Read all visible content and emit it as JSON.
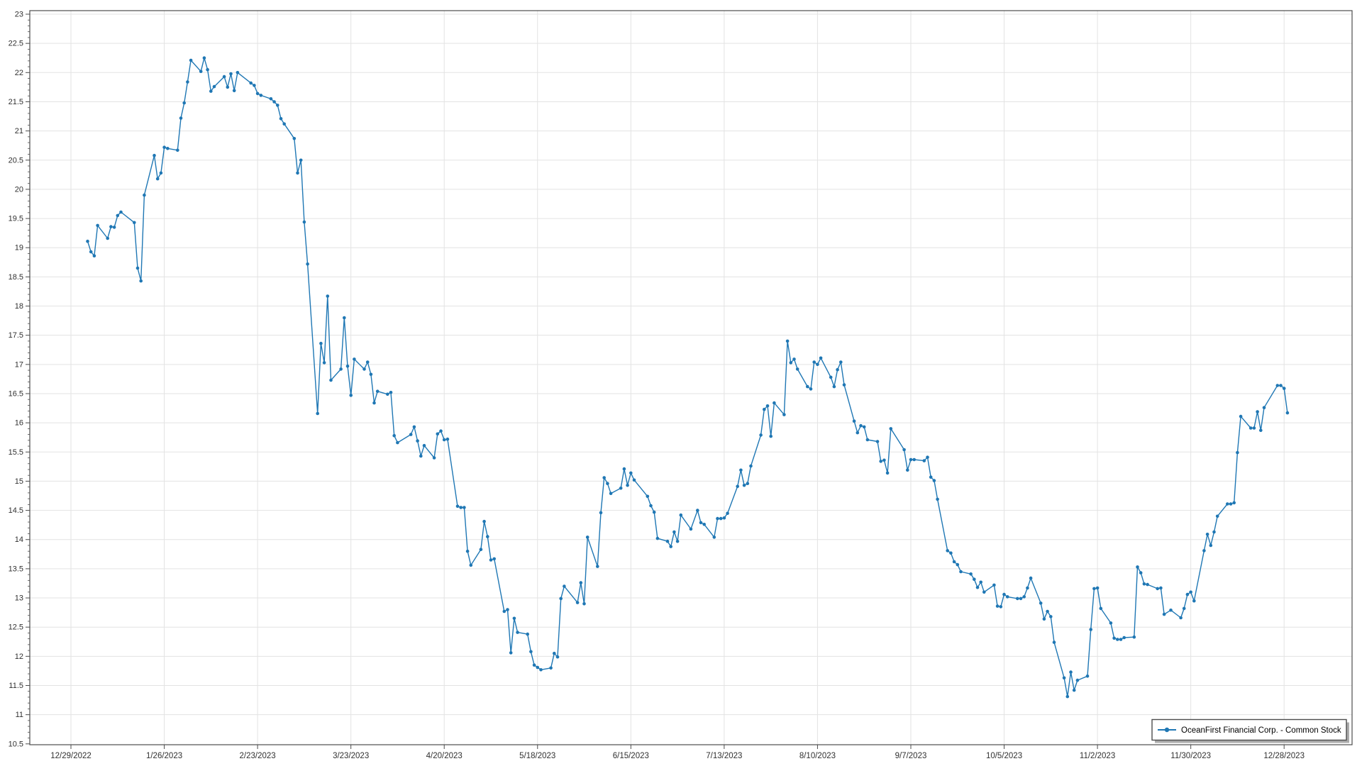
{
  "chart_data": {
    "type": "line",
    "title": "",
    "legend_position": "bottom-right",
    "grid": true,
    "colors": {
      "series": "#1f77b4",
      "grid": "#e3e3e3",
      "axis": "#4c4c4c",
      "tick_text": "#303030",
      "legend_border": "#4d4d4d",
      "legend_shadow": "#ababab",
      "background": "#ffffff"
    },
    "y_axis": {
      "min": 10.5,
      "max": 23,
      "major_step": 0.5,
      "minor_step": 0.1
    },
    "x_axis": {
      "start_date": "12/29/2022",
      "tick_interval_days": 28,
      "tick_labels": [
        "12/29/2022",
        "1/26/2023",
        "2/23/2023",
        "3/23/2023",
        "4/20/2023",
        "5/18/2023",
        "6/15/2023",
        "7/13/2023",
        "8/10/2023",
        "9/7/2023",
        "10/5/2023",
        "11/2/2023",
        "11/30/2023",
        "12/28/2023"
      ]
    },
    "series": [
      {
        "name": "OceanFirst Financial Corp. - Common Stock",
        "color": "#1f77b4",
        "points": [
          [
            "1/3/2023",
            19.11
          ],
          [
            "1/4/2023",
            18.93
          ],
          [
            "1/5/2023",
            18.86
          ],
          [
            "1/6/2023",
            19.38
          ],
          [
            "1/9/2023",
            19.16
          ],
          [
            "1/10/2023",
            19.36
          ],
          [
            "1/11/2023",
            19.35
          ],
          [
            "1/12/2023",
            19.55
          ],
          [
            "1/13/2023",
            19.61
          ],
          [
            "1/17/2023",
            19.43
          ],
          [
            "1/18/2023",
            18.65
          ],
          [
            "1/19/2023",
            18.43
          ],
          [
            "1/20/2023",
            19.9
          ],
          [
            "1/23/2023",
            20.58
          ],
          [
            "1/24/2023",
            20.18
          ],
          [
            "1/25/2023",
            20.28
          ],
          [
            "1/26/2023",
            20.72
          ],
          [
            "1/27/2023",
            20.7
          ],
          [
            "1/30/2023",
            20.67
          ],
          [
            "1/31/2023",
            21.22
          ],
          [
            "2/1/2023",
            21.48
          ],
          [
            "2/2/2023",
            21.84
          ],
          [
            "2/3/2023",
            22.21
          ],
          [
            "2/6/2023",
            22.02
          ],
          [
            "2/7/2023",
            22.25
          ],
          [
            "2/8/2023",
            22.05
          ],
          [
            "2/9/2023",
            21.68
          ],
          [
            "2/10/2023",
            21.76
          ],
          [
            "2/13/2023",
            21.93
          ],
          [
            "2/14/2023",
            21.75
          ],
          [
            "2/15/2023",
            21.98
          ],
          [
            "2/16/2023",
            21.69
          ],
          [
            "2/17/2023",
            22.0
          ],
          [
            "2/21/2023",
            21.82
          ],
          [
            "2/22/2023",
            21.78
          ],
          [
            "2/23/2023",
            21.64
          ],
          [
            "2/24/2023",
            21.61
          ],
          [
            "2/27/2023",
            21.55
          ],
          [
            "2/28/2023",
            21.5
          ],
          [
            "3/1/2023",
            21.44
          ],
          [
            "3/2/2023",
            21.21
          ],
          [
            "3/3/2023",
            21.12
          ],
          [
            "3/6/2023",
            20.87
          ],
          [
            "3/7/2023",
            20.28
          ],
          [
            "3/8/2023",
            20.5
          ],
          [
            "3/9/2023",
            19.44
          ],
          [
            "3/10/2023",
            18.72
          ],
          [
            "3/13/2023",
            16.16
          ],
          [
            "3/14/2023",
            17.36
          ],
          [
            "3/15/2023",
            17.03
          ],
          [
            "3/16/2023",
            18.17
          ],
          [
            "3/17/2023",
            16.73
          ],
          [
            "3/20/2023",
            16.92
          ],
          [
            "3/21/2023",
            17.8
          ],
          [
            "3/22/2023",
            16.97
          ],
          [
            "3/23/2023",
            16.47
          ],
          [
            "3/24/2023",
            17.09
          ],
          [
            "3/27/2023",
            16.92
          ],
          [
            "3/28/2023",
            17.04
          ],
          [
            "3/29/2023",
            16.83
          ],
          [
            "3/30/2023",
            16.34
          ],
          [
            "3/31/2023",
            16.54
          ],
          [
            "4/3/2023",
            16.49
          ],
          [
            "4/4/2023",
            16.52
          ],
          [
            "4/5/2023",
            15.78
          ],
          [
            "4/6/2023",
            15.66
          ],
          [
            "4/10/2023",
            15.8
          ],
          [
            "4/11/2023",
            15.93
          ],
          [
            "4/12/2023",
            15.69
          ],
          [
            "4/13/2023",
            15.43
          ],
          [
            "4/14/2023",
            15.61
          ],
          [
            "4/17/2023",
            15.4
          ],
          [
            "4/18/2023",
            15.81
          ],
          [
            "4/19/2023",
            15.86
          ],
          [
            "4/20/2023",
            15.71
          ],
          [
            "4/21/2023",
            15.72
          ],
          [
            "4/24/2023",
            14.57
          ],
          [
            "4/25/2023",
            14.55
          ],
          [
            "4/26/2023",
            14.55
          ],
          [
            "4/27/2023",
            13.8
          ],
          [
            "4/28/2023",
            13.56
          ],
          [
            "5/1/2023",
            13.83
          ],
          [
            "5/2/2023",
            14.31
          ],
          [
            "5/3/2023",
            14.05
          ],
          [
            "5/4/2023",
            13.65
          ],
          [
            "5/5/2023",
            13.67
          ],
          [
            "5/8/2023",
            12.77
          ],
          [
            "5/9/2023",
            12.8
          ],
          [
            "5/10/2023",
            12.06
          ],
          [
            "5/11/2023",
            12.65
          ],
          [
            "5/12/2023",
            12.41
          ],
          [
            "5/15/2023",
            12.38
          ],
          [
            "5/16/2023",
            12.08
          ],
          [
            "5/17/2023",
            11.85
          ],
          [
            "5/18/2023",
            11.81
          ],
          [
            "5/19/2023",
            11.77
          ],
          [
            "5/22/2023",
            11.8
          ],
          [
            "5/23/2023",
            12.05
          ],
          [
            "5/24/2023",
            11.99
          ],
          [
            "5/25/2023",
            12.99
          ],
          [
            "5/26/2023",
            13.2
          ],
          [
            "5/30/2023",
            12.92
          ],
          [
            "5/31/2023",
            13.26
          ],
          [
            "6/1/2023",
            12.9
          ],
          [
            "6/2/2023",
            14.04
          ],
          [
            "6/5/2023",
            13.54
          ],
          [
            "6/6/2023",
            14.46
          ],
          [
            "6/7/2023",
            15.06
          ],
          [
            "6/8/2023",
            14.96
          ],
          [
            "6/9/2023",
            14.79
          ],
          [
            "6/12/2023",
            14.88
          ],
          [
            "6/13/2023",
            15.21
          ],
          [
            "6/14/2023",
            14.93
          ],
          [
            "6/15/2023",
            15.14
          ],
          [
            "6/16/2023",
            15.02
          ],
          [
            "6/20/2023",
            14.74
          ],
          [
            "6/21/2023",
            14.58
          ],
          [
            "6/22/2023",
            14.47
          ],
          [
            "6/23/2023",
            14.02
          ],
          [
            "6/26/2023",
            13.97
          ],
          [
            "6/27/2023",
            13.88
          ],
          [
            "6/28/2023",
            14.13
          ],
          [
            "6/29/2023",
            13.97
          ],
          [
            "6/30/2023",
            14.42
          ],
          [
            "7/3/2023",
            14.18
          ],
          [
            "7/5/2023",
            14.5
          ],
          [
            "7/6/2023",
            14.29
          ],
          [
            "7/7/2023",
            14.26
          ],
          [
            "7/10/2023",
            14.04
          ],
          [
            "7/11/2023",
            14.36
          ],
          [
            "7/12/2023",
            14.36
          ],
          [
            "7/13/2023",
            14.37
          ],
          [
            "7/14/2023",
            14.45
          ],
          [
            "7/17/2023",
            14.91
          ],
          [
            "7/18/2023",
            15.19
          ],
          [
            "7/19/2023",
            14.93
          ],
          [
            "7/20/2023",
            14.96
          ],
          [
            "7/21/2023",
            15.26
          ],
          [
            "7/24/2023",
            15.79
          ],
          [
            "7/25/2023",
            16.23
          ],
          [
            "7/26/2023",
            16.29
          ],
          [
            "7/27/2023",
            15.77
          ],
          [
            "7/28/2023",
            16.34
          ],
          [
            "7/31/2023",
            16.14
          ],
          [
            "8/1/2023",
            17.4
          ],
          [
            "8/2/2023",
            17.03
          ],
          [
            "8/3/2023",
            17.09
          ],
          [
            "8/4/2023",
            16.92
          ],
          [
            "8/7/2023",
            16.62
          ],
          [
            "8/8/2023",
            16.58
          ],
          [
            "8/9/2023",
            17.04
          ],
          [
            "8/10/2023",
            17.0
          ],
          [
            "8/11/2023",
            17.11
          ],
          [
            "8/14/2023",
            16.78
          ],
          [
            "8/15/2023",
            16.62
          ],
          [
            "8/16/2023",
            16.91
          ],
          [
            "8/17/2023",
            17.04
          ],
          [
            "8/18/2023",
            16.65
          ],
          [
            "8/21/2023",
            16.03
          ],
          [
            "8/22/2023",
            15.83
          ],
          [
            "8/23/2023",
            15.95
          ],
          [
            "8/24/2023",
            15.93
          ],
          [
            "8/25/2023",
            15.71
          ],
          [
            "8/28/2023",
            15.68
          ],
          [
            "8/29/2023",
            15.34
          ],
          [
            "8/30/2023",
            15.36
          ],
          [
            "8/31/2023",
            15.14
          ],
          [
            "9/1/2023",
            15.9
          ],
          [
            "9/5/2023",
            15.54
          ],
          [
            "9/6/2023",
            15.19
          ],
          [
            "9/7/2023",
            15.37
          ],
          [
            "9/8/2023",
            15.37
          ],
          [
            "9/11/2023",
            15.35
          ],
          [
            "9/12/2023",
            15.41
          ],
          [
            "9/13/2023",
            15.07
          ],
          [
            "9/14/2023",
            15.01
          ],
          [
            "9/15/2023",
            14.69
          ],
          [
            "9/18/2023",
            13.81
          ],
          [
            "9/19/2023",
            13.77
          ],
          [
            "9/20/2023",
            13.62
          ],
          [
            "9/21/2023",
            13.57
          ],
          [
            "9/22/2023",
            13.45
          ],
          [
            "9/25/2023",
            13.41
          ],
          [
            "9/26/2023",
            13.32
          ],
          [
            "9/27/2023",
            13.18
          ],
          [
            "9/28/2023",
            13.27
          ],
          [
            "9/29/2023",
            13.1
          ],
          [
            "10/2/2023",
            13.22
          ],
          [
            "10/3/2023",
            12.86
          ],
          [
            "10/4/2023",
            12.85
          ],
          [
            "10/5/2023",
            13.06
          ],
          [
            "10/6/2023",
            13.02
          ],
          [
            "10/9/2023",
            12.99
          ],
          [
            "10/10/2023",
            12.99
          ],
          [
            "10/11/2023",
            13.02
          ],
          [
            "10/12/2023",
            13.17
          ],
          [
            "10/13/2023",
            13.34
          ],
          [
            "10/16/2023",
            12.91
          ],
          [
            "10/17/2023",
            12.64
          ],
          [
            "10/18/2023",
            12.77
          ],
          [
            "10/19/2023",
            12.68
          ],
          [
            "10/20/2023",
            12.24
          ],
          [
            "10/23/2023",
            11.63
          ],
          [
            "10/24/2023",
            11.31
          ],
          [
            "10/25/2023",
            11.73
          ],
          [
            "10/26/2023",
            11.42
          ],
          [
            "10/27/2023",
            11.59
          ],
          [
            "10/30/2023",
            11.66
          ],
          [
            "10/31/2023",
            12.46
          ],
          [
            "11/1/2023",
            13.16
          ],
          [
            "11/2/2023",
            13.17
          ],
          [
            "11/3/2023",
            12.82
          ],
          [
            "11/6/2023",
            12.57
          ],
          [
            "11/7/2023",
            12.31
          ],
          [
            "11/8/2023",
            12.29
          ],
          [
            "11/9/2023",
            12.29
          ],
          [
            "11/10/2023",
            12.32
          ],
          [
            "11/13/2023",
            12.33
          ],
          [
            "11/14/2023",
            13.53
          ],
          [
            "11/15/2023",
            13.43
          ],
          [
            "11/16/2023",
            13.24
          ],
          [
            "11/17/2023",
            13.23
          ],
          [
            "11/20/2023",
            13.16
          ],
          [
            "11/21/2023",
            13.17
          ],
          [
            "11/22/2023",
            12.72
          ],
          [
            "11/24/2023",
            12.79
          ],
          [
            "11/27/2023",
            12.66
          ],
          [
            "11/28/2023",
            12.82
          ],
          [
            "11/29/2023",
            13.06
          ],
          [
            "11/30/2023",
            13.1
          ],
          [
            "12/1/2023",
            12.95
          ],
          [
            "12/4/2023",
            13.81
          ],
          [
            "12/5/2023",
            14.09
          ],
          [
            "12/6/2023",
            13.9
          ],
          [
            "12/7/2023",
            14.13
          ],
          [
            "12/8/2023",
            14.4
          ],
          [
            "12/11/2023",
            14.61
          ],
          [
            "12/12/2023",
            14.61
          ],
          [
            "12/13/2023",
            14.63
          ],
          [
            "12/14/2023",
            15.49
          ],
          [
            "12/15/2023",
            16.11
          ],
          [
            "12/18/2023",
            15.91
          ],
          [
            "12/19/2023",
            15.91
          ],
          [
            "12/20/2023",
            16.19
          ],
          [
            "12/21/2023",
            15.87
          ],
          [
            "12/22/2023",
            16.26
          ],
          [
            "12/26/2023",
            16.64
          ],
          [
            "12/27/2023",
            16.64
          ],
          [
            "12/28/2023",
            16.59
          ],
          [
            "12/29/2023",
            16.17
          ]
        ]
      }
    ]
  }
}
